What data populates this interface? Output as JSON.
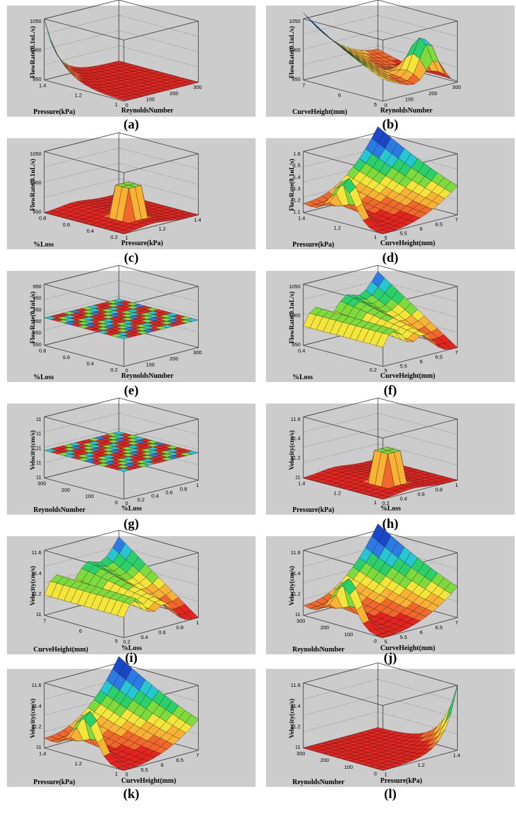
{
  "chart_data": [
    {
      "type": "surface",
      "caption": "(a)",
      "zlabel": "FlowRate(0.1nL/s)",
      "left_label": "Pressure(kPa)",
      "right_label": "ReynoldsNumber",
      "z_ticks": [
        "950",
        "1000",
        "1050"
      ],
      "left_ticks": [
        "1",
        "1.2",
        "1.4"
      ],
      "right_ticks": [
        "0",
        "100",
        "200",
        "300"
      ],
      "surface": "corner-decay"
    },
    {
      "type": "surface",
      "caption": "(b)",
      "zlabel": "FlowRate(0.1nL/s)",
      "left_label": "CurveHeight(mm)",
      "right_label": "ReynoldsNumber",
      "z_ticks": [
        "950",
        "1000",
        "1050"
      ],
      "left_ticks": [
        "5",
        "6",
        "7"
      ],
      "right_ticks": [
        "0",
        "100",
        "200",
        "300"
      ],
      "surface": "valley-peak"
    },
    {
      "type": "surface",
      "caption": "(c)",
      "zlabel": "FlowRate(0.1nL/s)",
      "left_label": "%Loss",
      "right_label": "Pressure(kPa)",
      "z_ticks": [
        "950",
        "1000",
        "1050"
      ],
      "left_ticks": [
        "0.2",
        "0.4",
        "0.6",
        "0.8"
      ],
      "right_ticks": [
        "1",
        "1.2",
        "1.4"
      ],
      "surface": "plateau"
    },
    {
      "type": "surface",
      "caption": "(d)",
      "zlabel": "FlowRate(0.1nL/s)",
      "left_label": "Pressure(kPa)",
      "right_label": "CurveHeight(mm)",
      "z_ticks": [
        "1.1",
        "1.2",
        "1.3",
        "1.4",
        "1.5",
        "1.6"
      ],
      "left_ticks": [
        "1",
        "1.2",
        "1.4"
      ],
      "right_ticks": [
        "5",
        "5.5",
        "6",
        "6.5",
        "7"
      ],
      "surface": "bowl-peak"
    },
    {
      "type": "surface",
      "caption": "(e)",
      "zlabel": "FlowRate(0.1nL/s)",
      "left_label": "%Loss",
      "right_label": "ReynoldsNumber",
      "z_ticks": [
        "950",
        "950",
        "950",
        "950",
        "950",
        "950"
      ],
      "left_ticks": [
        "0.2",
        "0.4",
        "0.6",
        "0.8"
      ],
      "right_ticks": [
        "0",
        "100",
        "200",
        "300"
      ],
      "surface": "flat-pattern"
    },
    {
      "type": "surface",
      "caption": "(f)",
      "zlabel": "FlowRate(0.1nL/s)",
      "left_label": "%Loss",
      "right_label": "CurveHeight(mm)",
      "z_ticks": [
        "950",
        "1000",
        "1050"
      ],
      "left_ticks": [
        "0.2",
        "0.4"
      ],
      "right_ticks": [
        "5",
        "5.5",
        "6",
        "6.5",
        "7"
      ],
      "surface": "ridge-valley"
    },
    {
      "type": "surface",
      "caption": "(g)",
      "zlabel": "Velocity(cm/s)",
      "left_label": "ReynoldsNumber",
      "right_label": "%Loss",
      "z_ticks": [
        "11",
        "11",
        "11",
        "11",
        "11"
      ],
      "left_ticks": [
        "0",
        "100",
        "200",
        "300"
      ],
      "right_ticks": [
        "0",
        "0.2",
        "0.4",
        "0.6",
        "0.8",
        "1"
      ],
      "surface": "flat-pattern"
    },
    {
      "type": "surface",
      "caption": "(h)",
      "zlabel": "Velocity(cm/s)",
      "left_label": "Pressure(kPa)",
      "right_label": "%Loss",
      "z_ticks": [
        "11",
        "11.2",
        "11.4",
        "11.6"
      ],
      "left_ticks": [
        "1",
        "1.2",
        "1.4"
      ],
      "right_ticks": [
        "0.2",
        "0.4",
        "0.6",
        "0.8",
        "1"
      ],
      "surface": "plateau"
    },
    {
      "type": "surface",
      "caption": "(i)",
      "zlabel": "Velocity(cm/s)",
      "left_label": "CurveHeight(mm)",
      "right_label": "%Loss",
      "z_ticks": [
        "11",
        "11.2",
        "11.4",
        "11.6"
      ],
      "left_ticks": [
        "5",
        "6",
        "7"
      ],
      "right_ticks": [
        "0.2",
        "0.4",
        "0.6",
        "0.8",
        "1"
      ],
      "surface": "ridge-valley"
    },
    {
      "type": "surface",
      "caption": "(j)",
      "zlabel": "Velocity(cm/s)",
      "left_label": "ReynoldsNumber",
      "right_label": "CurveHeight(mm)",
      "z_ticks": [
        "11",
        "11.2",
        "11.4",
        "11.6"
      ],
      "left_ticks": [
        "0",
        "100",
        "200",
        "300"
      ],
      "right_ticks": [
        "5",
        "5.5",
        "6",
        "6.5",
        "7"
      ],
      "surface": "bowl-peak"
    },
    {
      "type": "surface",
      "caption": "(k)",
      "zlabel": "Velocity(cm/s)",
      "left_label": "Pressure(kPa)",
      "right_label": "CurveHeight(mm)",
      "z_ticks": [
        "11",
        "11.2",
        "11.4",
        "11.6"
      ],
      "left_ticks": [
        "1",
        "1.2",
        "1.4"
      ],
      "right_ticks": [
        "5",
        "5.5",
        "6",
        "6.5",
        "7"
      ],
      "surface": "bowl-peak"
    },
    {
      "type": "surface",
      "caption": "(l)",
      "zlabel": "Velocity(cm/s)",
      "left_label": "ReynoldsNumber",
      "right_label": "Pressure(kPa)",
      "z_ticks": [
        "11",
        "11.2",
        "11.4",
        "11.6"
      ],
      "left_ticks": [
        "0",
        "100",
        "200",
        "300"
      ],
      "right_ticks": [
        "1",
        "1.2",
        "1.4"
      ],
      "surface": "corner-rise"
    }
  ]
}
